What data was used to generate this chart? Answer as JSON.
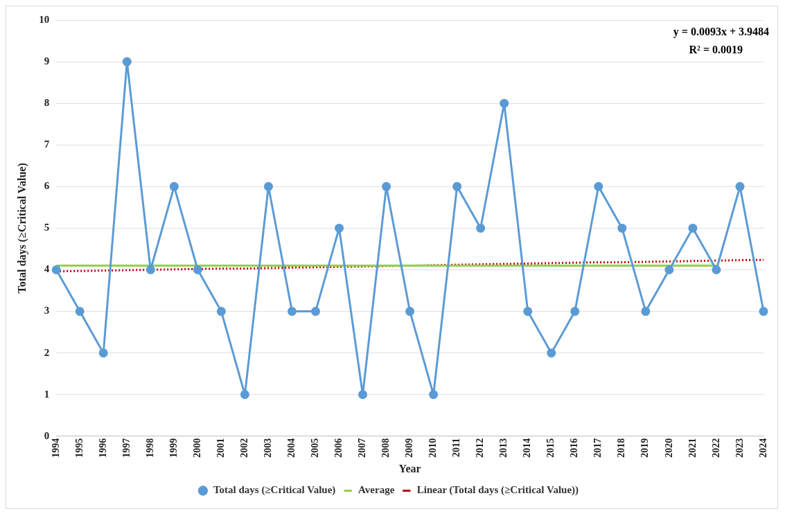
{
  "chart_data": {
    "type": "line",
    "xlabel": "Year",
    "ylabel": "Total days (≥Critical Value)",
    "categories": [
      "1994",
      "1995",
      "1996",
      "1997",
      "1998",
      "1999",
      "2000",
      "2001",
      "2002",
      "2003",
      "2004",
      "2005",
      "2006",
      "2007",
      "2008",
      "2009",
      "2010",
      "2011",
      "2012",
      "2013",
      "2014",
      "2015",
      "2016",
      "2017",
      "2018",
      "2019",
      "2020",
      "2021",
      "2022",
      "2023",
      "2024"
    ],
    "series": [
      {
        "name": "Total days (≥Critical Value)",
        "color": "#5b9bd5",
        "marker": "circle",
        "values": [
          4,
          3,
          2,
          9,
          4,
          6,
          4,
          3,
          1,
          6,
          3,
          3,
          5,
          1,
          6,
          3,
          1,
          6,
          5,
          8,
          3,
          2,
          3,
          6,
          5,
          3,
          4,
          5,
          4,
          6,
          3
        ]
      },
      {
        "name": "Average",
        "color": "#92d050",
        "marker": "none",
        "values": [
          4.1,
          4.1,
          4.1,
          4.1,
          4.1,
          4.1,
          4.1,
          4.1,
          4.1,
          4.1,
          4.1,
          4.1,
          4.1,
          4.1,
          4.1,
          4.1,
          4.1,
          4.1,
          4.1,
          4.1,
          4.1,
          4.1,
          4.1,
          4.1,
          4.1,
          4.1,
          4.1,
          4.1,
          4.1,
          null,
          null
        ]
      },
      {
        "name": "Linear (Total days (≥Critical Value))",
        "color": "#c00000",
        "marker": "none",
        "line_style": "dotted",
        "values": [
          3.96,
          3.97,
          3.98,
          3.99,
          4.0,
          4.01,
          4.02,
          4.03,
          4.03,
          4.04,
          4.05,
          4.06,
          4.07,
          4.08,
          4.09,
          4.1,
          4.11,
          4.12,
          4.13,
          4.14,
          4.15,
          4.16,
          4.17,
          4.18,
          4.18,
          4.19,
          4.2,
          4.21,
          4.22,
          4.23,
          4.24
        ]
      }
    ],
    "ylim": [
      0,
      10
    ],
    "yticks": [
      0,
      1,
      2,
      3,
      4,
      5,
      6,
      7,
      8,
      9,
      10
    ],
    "grid": "y",
    "legend": "bottom",
    "annotations": [
      "y = 0.0093x + 3.9484",
      "R² = 0.0019"
    ]
  }
}
